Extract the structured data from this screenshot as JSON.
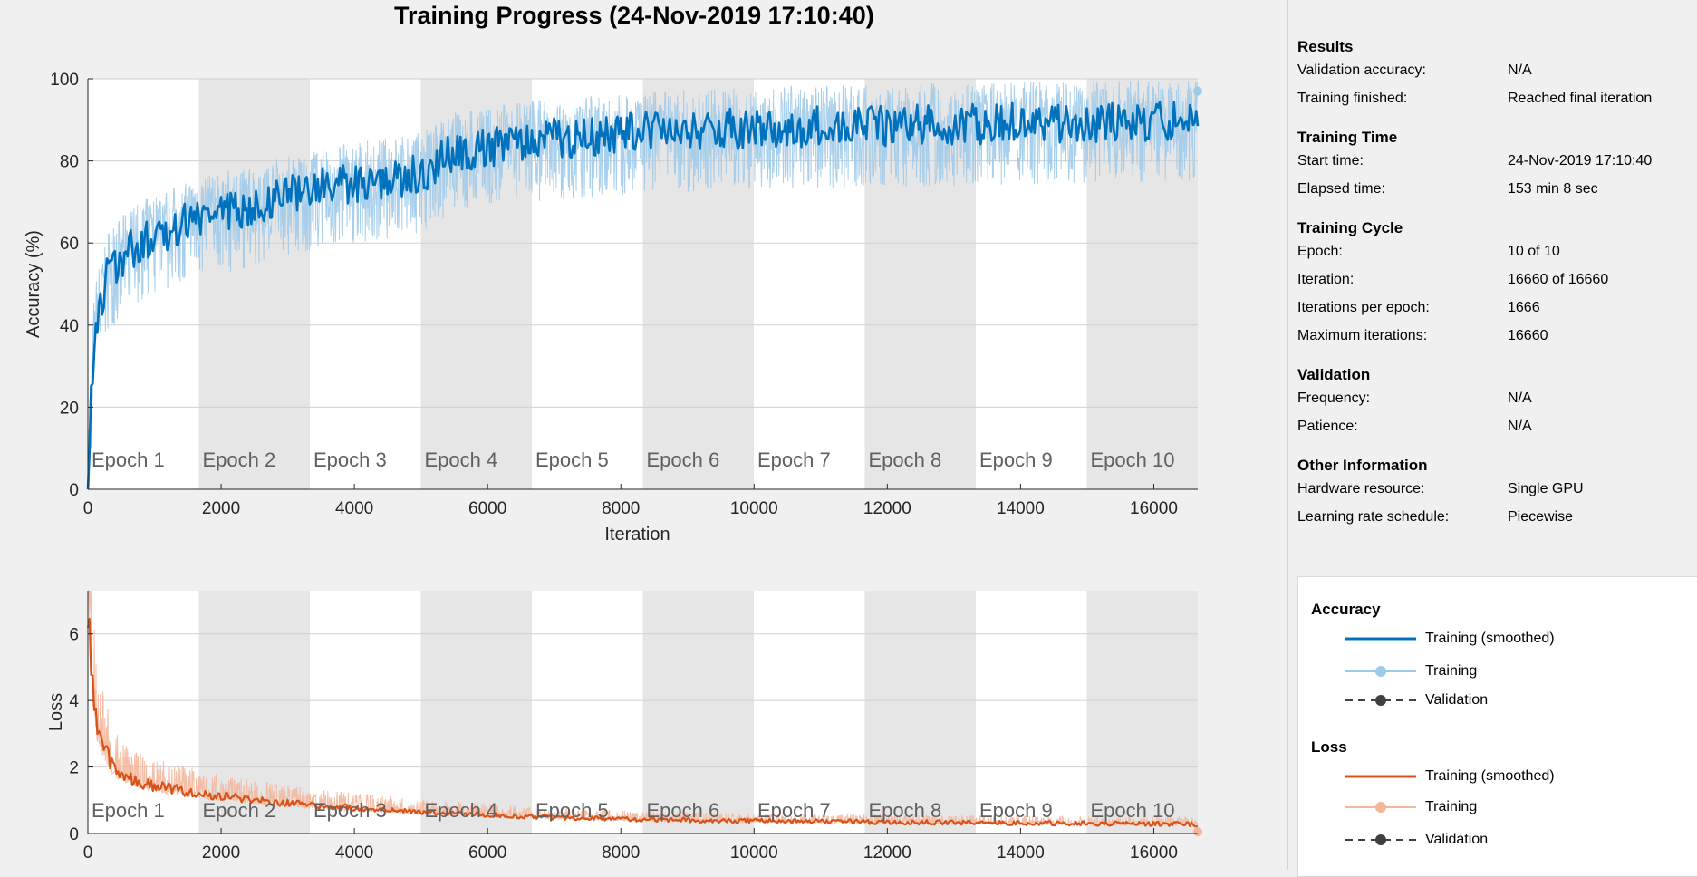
{
  "title": "Training Progress (24-Nov-2019 17:10:40)",
  "colors": {
    "accuracy_smoothed": "#0072bd",
    "accuracy_raw": "#9ecae9",
    "loss_smoothed": "#d95319",
    "loss_raw": "#f4b79c",
    "validation": "#404040",
    "epoch_band": "#e6e6e6"
  },
  "info_panel": {
    "sections": [
      {
        "title": "Results",
        "rows": [
          {
            "key": "Validation accuracy:",
            "value": "N/A"
          },
          {
            "key": "Training finished:",
            "value": "Reached final iteration"
          }
        ]
      },
      {
        "title": "Training Time",
        "rows": [
          {
            "key": "Start time:",
            "value": "24-Nov-2019 17:10:40"
          },
          {
            "key": "Elapsed time:",
            "value": "153 min 8 sec"
          }
        ]
      },
      {
        "title": "Training Cycle",
        "rows": [
          {
            "key": "Epoch:",
            "value": "10 of 10"
          },
          {
            "key": "Iteration:",
            "value": "16660 of 16660"
          },
          {
            "key": "Iterations per epoch:",
            "value": "1666"
          },
          {
            "key": "Maximum iterations:",
            "value": "16660"
          }
        ]
      },
      {
        "title": "Validation",
        "rows": [
          {
            "key": "Frequency:",
            "value": "N/A"
          },
          {
            "key": "Patience:",
            "value": "N/A"
          }
        ]
      },
      {
        "title": "Other Information",
        "rows": [
          {
            "key": "Hardware resource:",
            "value": "Single GPU"
          },
          {
            "key": "Learning rate schedule:",
            "value": "Piecewise"
          }
        ]
      }
    ]
  },
  "legend": {
    "accuracy_title": "Accuracy",
    "loss_title": "Loss",
    "smoothed_label": "Training (smoothed)",
    "training_label": "Training",
    "validation_label": "Validation"
  },
  "chart_data": [
    {
      "type": "line",
      "xlabel": "Iteration",
      "ylabel": "Accuracy (%)",
      "xlim": [
        0,
        16660
      ],
      "ylim": [
        0,
        100
      ],
      "xticks": [
        0,
        2000,
        4000,
        6000,
        8000,
        10000,
        12000,
        14000,
        16000
      ],
      "yticks": [
        0,
        20,
        40,
        60,
        80,
        100
      ],
      "epochs": {
        "count": 10,
        "iterations_per_epoch": 1666,
        "labels": [
          "Epoch 1",
          "Epoch 2",
          "Epoch 3",
          "Epoch 4",
          "Epoch 5",
          "Epoch 6",
          "Epoch 7",
          "Epoch 8",
          "Epoch 9",
          "Epoch 10"
        ]
      },
      "series": [
        {
          "name": "Training (smoothed)",
          "x": [
            0,
            100,
            300,
            600,
            1000,
            1666,
            2500,
            3332,
            4200,
            4998,
            5500,
            6664,
            8330,
            9996,
            11662,
            13328,
            14994,
            16660
          ],
          "y": [
            5,
            40,
            53,
            58,
            62,
            66,
            69,
            73,
            75,
            77,
            82,
            85,
            87,
            88,
            88.5,
            89,
            89.5,
            90
          ]
        },
        {
          "name": "Training",
          "noise_range": [
            -25,
            10
          ],
          "last_value": 97
        }
      ]
    },
    {
      "type": "line",
      "xlabel": "Iteration",
      "ylabel": "Loss",
      "xlim": [
        0,
        16660
      ],
      "ylim": [
        0,
        7.3
      ],
      "xticks": [
        0,
        2000,
        4000,
        6000,
        8000,
        10000,
        12000,
        14000,
        16000
      ],
      "yticks": [
        0,
        2,
        4,
        6
      ],
      "epochs": {
        "count": 10,
        "iterations_per_epoch": 1666,
        "labels": [
          "Epoch 1",
          "Epoch 2",
          "Epoch 3",
          "Epoch 4",
          "Epoch 5",
          "Epoch 6",
          "Epoch 7",
          "Epoch 8",
          "Epoch 9",
          "Epoch 10"
        ]
      },
      "series": [
        {
          "name": "Training (smoothed)",
          "x": [
            0,
            50,
            150,
            400,
            800,
            1666,
            2500,
            3332,
            4998,
            6664,
            8330,
            9996,
            11662,
            13328,
            14994,
            16660
          ],
          "y": [
            7.0,
            4.8,
            3.0,
            1.9,
            1.5,
            1.2,
            1.0,
            0.85,
            0.65,
            0.5,
            0.42,
            0.38,
            0.35,
            0.32,
            0.3,
            0.28
          ]
        },
        {
          "name": "Training",
          "noise_range": [
            -0.4,
            0.9
          ],
          "last_value": 0.05
        }
      ]
    }
  ]
}
